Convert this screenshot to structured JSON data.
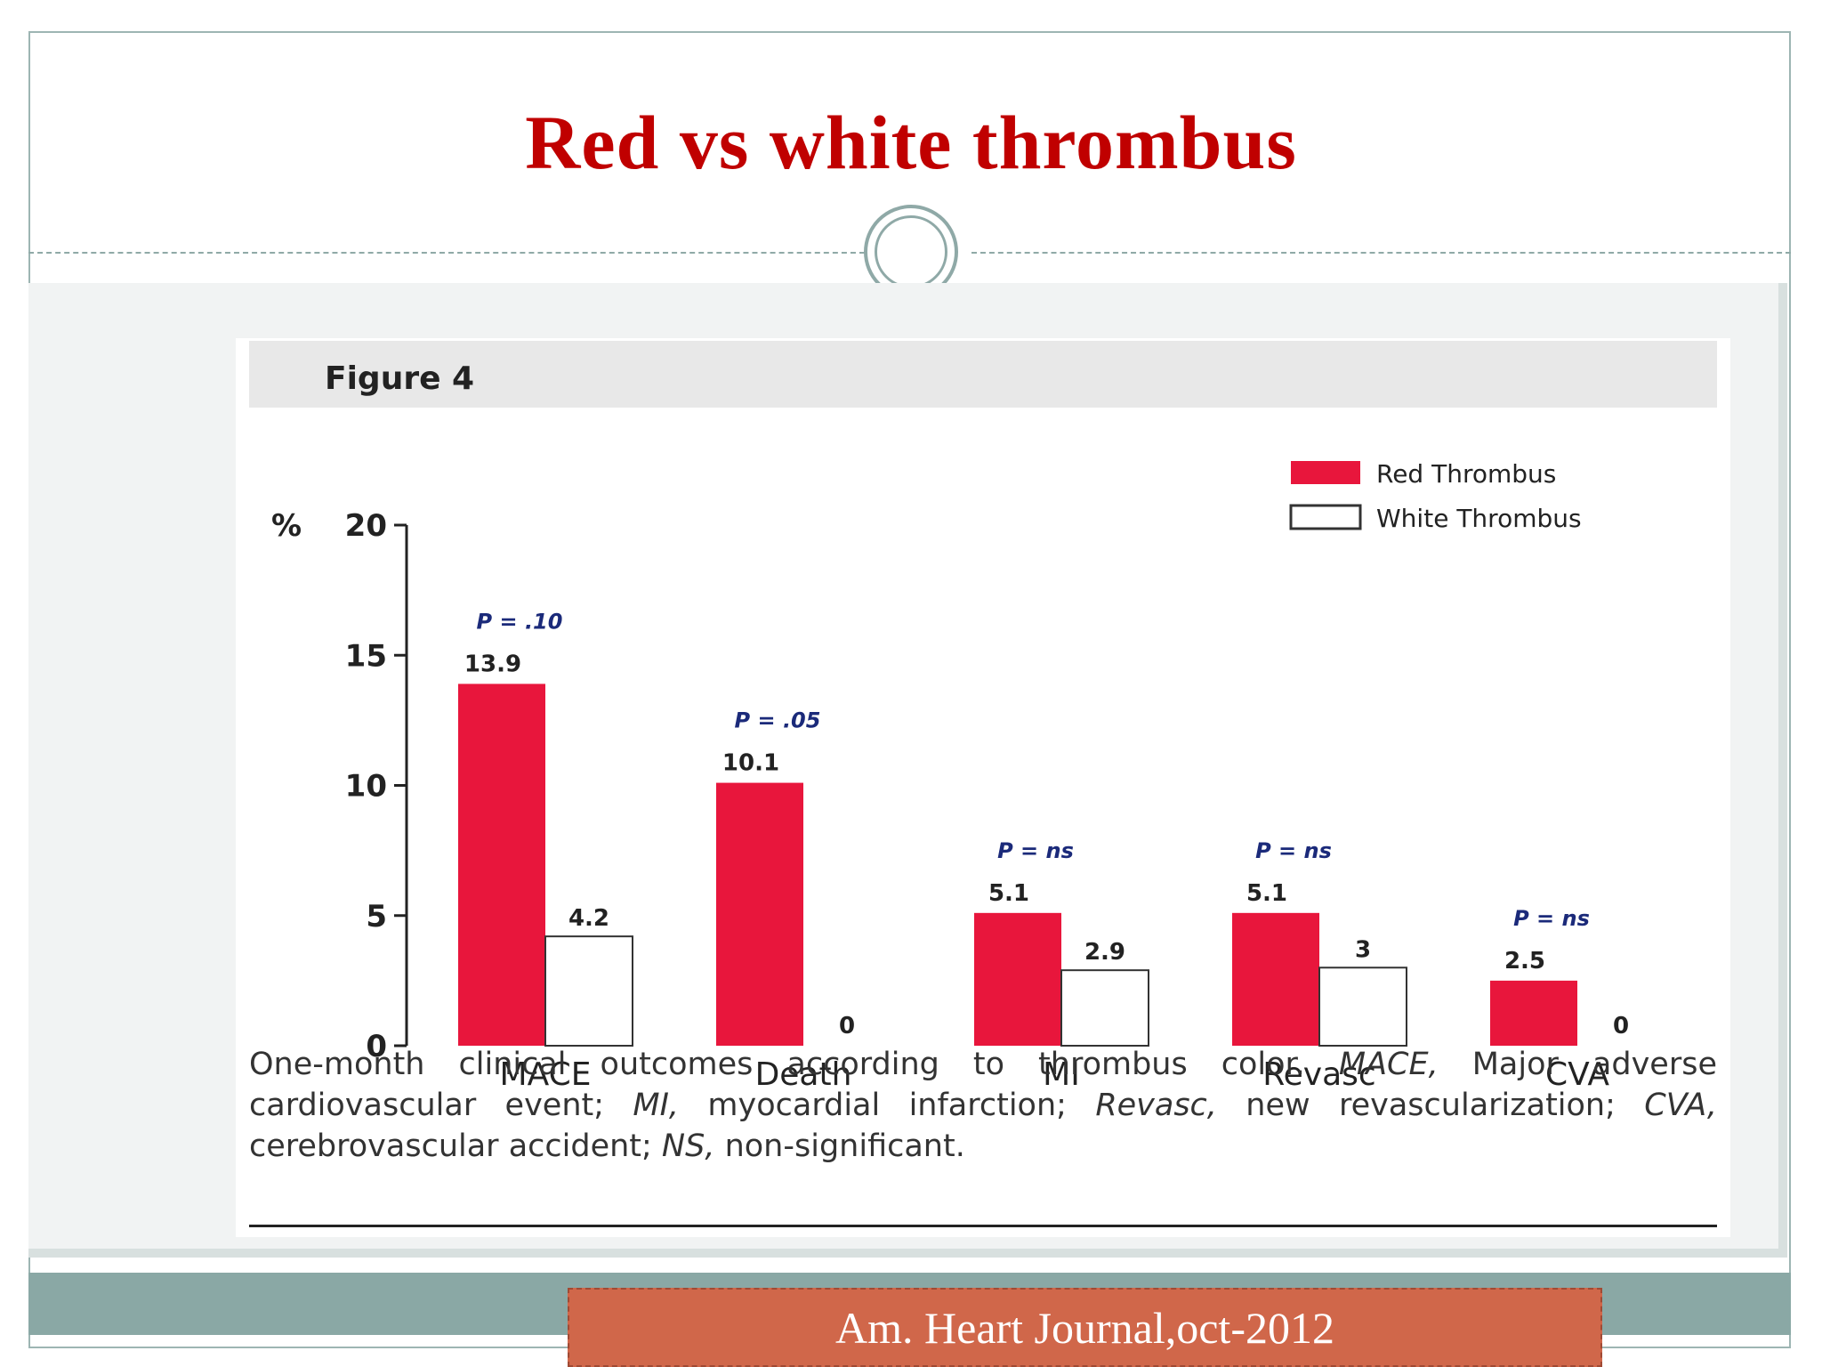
{
  "slide": {
    "title": "Red vs white thrombus",
    "citation": "Am. Heart Journal,oct-2012"
  },
  "figure": {
    "label": "Figure 4",
    "caption": {
      "part1": "One-month clinical outcomes according to thrombus color. ",
      "abbr_mace": "MACE,",
      "part2": " Major adverse cardiovascular event; ",
      "abbr_mi": "MI,",
      "part3": " myocardial infarction; ",
      "abbr_revasc": "Revasc,",
      "part4": " new revascularization; ",
      "abbr_cva": "CVA,",
      "part5": " cerebrovascular accident; ",
      "abbr_ns": "NS,",
      "part6": " non-significant."
    }
  },
  "chart_data": {
    "type": "bar",
    "title": "",
    "xlabel": "",
    "ylabel": "%",
    "ylim": [
      0,
      20
    ],
    "yticks": [
      0,
      5,
      10,
      15,
      20
    ],
    "categories": [
      "MACE",
      "Death",
      "MI",
      "Revasc",
      "CVA"
    ],
    "series": [
      {
        "name": "Red Thrombus",
        "values": [
          13.9,
          10.1,
          5.1,
          5.1,
          2.5
        ],
        "labels": [
          "13.9",
          "10.1",
          "5.1",
          "5.1",
          "2.5"
        ],
        "color": "#e8163c"
      },
      {
        "name": "White Thrombus",
        "values": [
          4.2,
          0,
          2.9,
          3,
          0
        ],
        "labels": [
          "4.2",
          "0",
          "2.9",
          "3",
          "0"
        ],
        "color": "#ffffff"
      }
    ],
    "annotations": [
      "P = .10",
      "P = .05",
      "P = ns",
      "P = ns",
      "P = ns"
    ],
    "legend_position": "top-right",
    "grid": false
  }
}
